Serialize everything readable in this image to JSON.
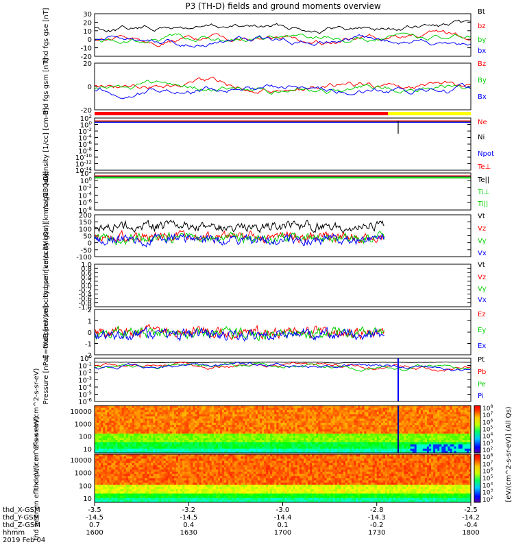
{
  "title": "P3 (TH-D) fields and ground moments overview",
  "colors": {
    "black": "#000000",
    "red": "#ff0000",
    "green": "#00d000",
    "blue": "#0000ff",
    "yellow": "#ffff00"
  },
  "footer": {
    "rows": [
      {
        "label": "thd_X-GSM",
        "values": [
          "-3.5",
          "-3.2",
          "-3.0",
          "-2.8",
          "-2.5"
        ]
      },
      {
        "label": "thd_Y-GSM",
        "values": [
          "-14.5",
          "-14.5",
          "-14.4",
          "-14.3",
          "-14.2"
        ]
      },
      {
        "label": "thd_Z-GSM",
        "values": [
          "0.7",
          "0.4",
          "0.1",
          "-0.2",
          "-0.4"
        ]
      },
      {
        "label": "hhmm",
        "values": [
          "1600",
          "1630",
          "1700",
          "1730",
          "1800"
        ]
      }
    ],
    "date": "2019 Feb 04"
  },
  "chart_data": [
    {
      "type": "line",
      "ylabel": "thd fgs gse [nT]",
      "ylim": [
        -20,
        30
      ],
      "yticks": [
        "30",
        "20",
        "10",
        "0",
        "-10",
        "-20"
      ],
      "series": [
        {
          "name": "Bt",
          "color": "black"
        },
        {
          "name": "bz",
          "color": "red"
        },
        {
          "name": "by",
          "color": "green"
        },
        {
          "name": "bx",
          "color": "blue"
        }
      ]
    },
    {
      "type": "line",
      "ylabel": "thd fgs gsm [nT]",
      "ylim": [
        -25,
        25
      ],
      "yticks": [
        "20",
        "0",
        "-20"
      ],
      "series": [
        {
          "name": "Bz",
          "color": "red"
        },
        {
          "name": "By",
          "color": "green"
        },
        {
          "name": "Bx",
          "color": "blue"
        }
      ]
    },
    {
      "type": "line",
      "ylabel": "Density [1/cc] [cm-3]",
      "scale": "log",
      "ylim": [
        "10^-14",
        "10^2"
      ],
      "yticks": [
        "10^2",
        "10^0",
        "10^-2",
        "10^-4",
        "10^-6",
        "10^-8",
        "10^-10",
        "10^-12",
        "10^-14"
      ],
      "series": [
        {
          "name": "Ne",
          "color": "red"
        },
        {
          "name": "Ni",
          "color": "black"
        },
        {
          "name": "Npot",
          "color": "blue"
        }
      ]
    },
    {
      "type": "line",
      "ylabel": "mag13 [eV]",
      "scale": "log",
      "ylim": [
        "10^-8",
        "10^2"
      ],
      "yticks": [
        "10^2",
        "10^0",
        "10^-2",
        "10^-4",
        "10^-6",
        "10^-8"
      ],
      "series": [
        {
          "name": "Te⊥",
          "color": "red"
        },
        {
          "name": "Te||",
          "color": "black"
        },
        {
          "name": "Ti⊥",
          "color": "green"
        },
        {
          "name": "Ti||",
          "color": "green"
        }
      ]
    },
    {
      "type": "line",
      "ylabel": "thd peir velocity gsm [km/s (All Qs)]",
      "ylim": [
        -100,
        200
      ],
      "yticks": [
        "200",
        "150",
        "100",
        "50",
        "0",
        "-50",
        "-100"
      ],
      "series": [
        {
          "name": "Vt",
          "color": "black"
        },
        {
          "name": "Vz",
          "color": "red"
        },
        {
          "name": "Vy",
          "color": "green"
        },
        {
          "name": "Vx",
          "color": "blue"
        }
      ]
    },
    {
      "type": "line",
      "ylabel": "thd peer velocity gsm [km/s (All Qs)]",
      "ylim": [
        -1.0,
        1.0
      ],
      "yticks": [
        "1.0",
        "0.8",
        "0.6",
        "0.4",
        "0.2",
        "0.0",
        "-0.2",
        "-0.4",
        "-0.6",
        "-0.8",
        "-1.0"
      ],
      "series": [
        {
          "name": "Vt",
          "color": "black"
        },
        {
          "name": "Vz",
          "color": "red"
        },
        {
          "name": "Vy",
          "color": "green"
        },
        {
          "name": "Vx",
          "color": "blue"
        }
      ]
    },
    {
      "type": "line",
      "ylabel": "E=-VxB [mV/m]",
      "ylim": [
        -2,
        2
      ],
      "yticks": [
        "2",
        "1",
        "0",
        "-1",
        "-2"
      ],
      "series": [
        {
          "name": "Ez",
          "color": "red"
        },
        {
          "name": "Ey",
          "color": "green"
        },
        {
          "name": "Ex",
          "color": "blue"
        }
      ]
    },
    {
      "type": "line",
      "ylabel": "Pressure [nPa]",
      "scale": "log",
      "ylim": [
        "10^-8",
        "10^0"
      ],
      "yticks": [
        "10^0",
        "10^-1",
        "10^-2",
        "10^-3",
        "10^-4",
        "10^-5",
        "10^-6"
      ],
      "series": [
        {
          "name": "Pt",
          "color": "black"
        },
        {
          "name": "Pb",
          "color": "red"
        },
        {
          "name": "Pe",
          "color": "green"
        },
        {
          "name": "Pi",
          "color": "blue"
        }
      ]
    },
    {
      "type": "heatmap",
      "ylabel": "thd peir en eflux eV/(cm^2-s-sr-eV)",
      "scale": "log",
      "yticks": [
        "10000",
        "1000",
        "100",
        "10"
      ]
    },
    {
      "type": "heatmap",
      "ylabel": "thd peer en eflux eV/(cm^2-s-sr-eV)",
      "scale": "log",
      "yticks": [
        "10000",
        "1000",
        "100",
        "10"
      ]
    }
  ],
  "colorbar": {
    "label": "[eV/(cm^2-s-sr-eV)] (All Qs)",
    "ticks_top": [
      "10^8",
      "10^7",
      "10^6",
      "10^5",
      "10^4",
      "10^3",
      "10^2"
    ],
    "ticks_bottom": [
      "10^8",
      "10^7",
      "10^6",
      "10^5",
      "10^4",
      "10^3",
      "10^2"
    ]
  }
}
